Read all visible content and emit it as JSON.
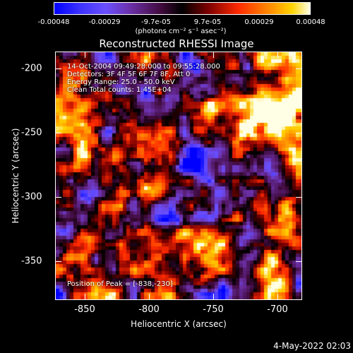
{
  "colorbar": {
    "ticks": [
      "-0.00048",
      "-0.00029",
      "-9.7e-05",
      "9.7e-05",
      "0.00029",
      "0.00048"
    ],
    "unit_label": "(photons cm⁻² s⁻¹ asec⁻²)"
  },
  "title": "Reconstructed RHESSI Image",
  "annotations": {
    "time_range": "14-Oct-2004 09:49:28.000 to 09:55:28.000",
    "detectors": "Detectors: 3F 4F 5F 6F 7F 8F, Att 0",
    "energy": "Energy Range: 25.0 - 50.0 keV",
    "clean": "Clean    Total counts: 1.45E+04",
    "peak": "Position of Peak = [-838,-230]"
  },
  "axes": {
    "xlabel": "Heliocentric X (arcsec)",
    "ylabel": "Heliocentric Y (arcsec)",
    "xticks": [
      "-850",
      "-800",
      "-750",
      "-700"
    ],
    "yticks": [
      "-200",
      "-250",
      "-300",
      "-350"
    ],
    "xlim": [
      -873,
      -680
    ],
    "ylim": [
      -378,
      -186
    ]
  },
  "datestamp": "4-May-2022 02:03",
  "chart_data": {
    "type": "heatmap",
    "title": "Reconstructed RHESSI Image",
    "xlabel": "Heliocentric X (arcsec)",
    "ylabel": "Heliocentric Y (arcsec)",
    "xlim": [
      -873,
      -680
    ],
    "ylim": [
      -378,
      -186
    ],
    "color_range": [
      -0.00048,
      0.00048
    ],
    "peak_position": [
      -838,
      -230
    ]
  },
  "colors": {
    "background": "#000000",
    "text": "#ffffff"
  }
}
